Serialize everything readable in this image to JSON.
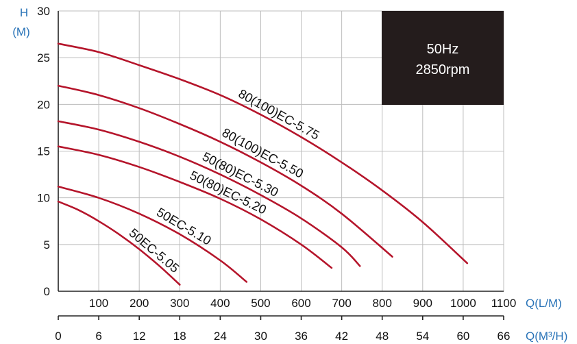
{
  "chart_data": {
    "type": "line",
    "y_axis": {
      "label_line1": "H",
      "label_line2": "(M)",
      "ylim": [
        0,
        30
      ],
      "ticks": [
        "0",
        "5",
        "10",
        "15",
        "20",
        "25",
        "30"
      ]
    },
    "x_axis_flow_lpm": {
      "label": "Q(L/M)",
      "xlim": [
        0,
        1100
      ],
      "ticks": [
        "100",
        "200",
        "300",
        "400",
        "500",
        "600",
        "700",
        "800",
        "900",
        "1000",
        "1100"
      ]
    },
    "x_axis_flow_m3h": {
      "label": "Q(M³/H)",
      "xlim": [
        0,
        66
      ],
      "ticks": [
        "0",
        "6",
        "12",
        "18",
        "24",
        "30",
        "36",
        "42",
        "48",
        "54",
        "60",
        "66"
      ]
    },
    "legend_box": {
      "line1": "50Hz",
      "line2": "2850rpm",
      "placement": "top-right"
    },
    "grid": true,
    "curve_color": "#b5152b",
    "series": [
      {
        "name": "80(100)EC-5.75",
        "x": [
          0,
          100,
          200,
          300,
          400,
          500,
          600,
          700,
          800,
          900,
          1010
        ],
        "y": [
          26.5,
          25.6,
          24.2,
          22.7,
          21.0,
          18.9,
          16.5,
          13.8,
          10.8,
          7.4,
          3.0
        ]
      },
      {
        "name": "80(100)EC-5.50",
        "x": [
          0,
          100,
          200,
          300,
          400,
          500,
          600,
          700,
          825
        ],
        "y": [
          22.0,
          21.0,
          19.6,
          17.9,
          16.0,
          13.8,
          11.3,
          8.3,
          3.7
        ]
      },
      {
        "name": "50(80)EC-5.30",
        "x": [
          0,
          100,
          200,
          300,
          400,
          500,
          600,
          700,
          745
        ],
        "y": [
          18.2,
          17.3,
          16.0,
          14.4,
          12.5,
          10.3,
          7.8,
          4.7,
          2.7
        ]
      },
      {
        "name": "50(80)EC-5.20",
        "x": [
          0,
          100,
          200,
          300,
          400,
          500,
          600,
          675
        ],
        "y": [
          15.5,
          14.6,
          13.3,
          11.7,
          9.9,
          7.7,
          5.0,
          2.5
        ]
      },
      {
        "name": "50EC-5.10",
        "x": [
          0,
          100,
          200,
          300,
          400,
          465
        ],
        "y": [
          11.2,
          10.0,
          8.3,
          6.1,
          3.3,
          1.0
        ]
      },
      {
        "name": "50EC-5.05",
        "x": [
          0,
          50,
          100,
          150,
          200,
          250,
          300
        ],
        "y": [
          9.6,
          8.7,
          7.5,
          6.1,
          4.5,
          2.7,
          0.7
        ]
      }
    ]
  }
}
